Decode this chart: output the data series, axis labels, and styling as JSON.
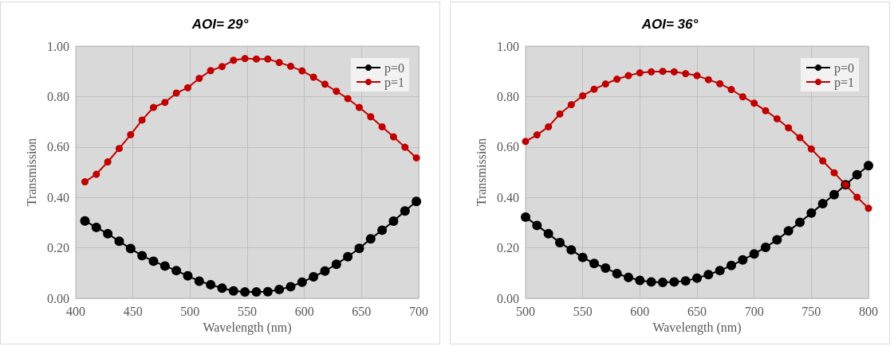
{
  "chart_data": [
    {
      "type": "line",
      "title": "AOI= 29°",
      "xlabel": "Wavelength (nm)",
      "ylabel": "Transmission",
      "x": [
        408,
        418,
        428,
        438,
        448,
        458,
        468,
        478,
        488,
        498,
        508,
        518,
        528,
        538,
        548,
        558,
        568,
        578,
        588,
        598,
        608,
        618,
        628,
        638,
        648,
        658,
        668,
        678,
        688,
        698
      ],
      "series": [
        {
          "name": "p=0",
          "color": "#000000",
          "values": [
            0.307,
            0.281,
            0.256,
            0.226,
            0.197,
            0.169,
            0.147,
            0.128,
            0.11,
            0.089,
            0.068,
            0.054,
            0.04,
            0.029,
            0.025,
            0.025,
            0.026,
            0.035,
            0.046,
            0.064,
            0.085,
            0.108,
            0.135,
            0.165,
            0.198,
            0.236,
            0.27,
            0.306,
            0.346,
            0.384
          ]
        },
        {
          "name": "p=1",
          "color": "#c00000",
          "values": [
            0.462,
            0.492,
            0.541,
            0.594,
            0.649,
            0.707,
            0.757,
            0.777,
            0.814,
            0.835,
            0.872,
            0.903,
            0.919,
            0.944,
            0.951,
            0.949,
            0.949,
            0.935,
            0.92,
            0.902,
            0.877,
            0.849,
            0.821,
            0.792,
            0.757,
            0.72,
            0.68,
            0.64,
            0.599,
            0.557
          ]
        }
      ],
      "xlim": [
        400,
        700
      ],
      "xticks": [
        400,
        450,
        500,
        550,
        600,
        650,
        700
      ],
      "ylim": [
        0,
        1
      ],
      "yticks": [
        {
          "value": 0,
          "label": "0.00"
        },
        {
          "value": 0.2,
          "label": "0.20"
        },
        {
          "value": 0.4,
          "label": "0.40"
        },
        {
          "value": 0.6,
          "label": "0.60"
        },
        {
          "value": 0.8,
          "label": "0.80"
        },
        {
          "value": 1,
          "label": "1.00"
        }
      ],
      "grid": true,
      "legend": "top right",
      "marker": "circle",
      "line_style": "solid"
    },
    {
      "type": "line",
      "title": "AOI= 36°",
      "xlabel": "Wavelength (nm)",
      "ylabel": "Transmission",
      "x": [
        500,
        510,
        520,
        530,
        540,
        550,
        560,
        570,
        580,
        590,
        600,
        610,
        620,
        630,
        640,
        650,
        660,
        670,
        680,
        690,
        700,
        710,
        720,
        730,
        740,
        750,
        760,
        770,
        780,
        790,
        800
      ],
      "series": [
        {
          "name": "p=0",
          "color": "#000000",
          "values": [
            0.322,
            0.289,
            0.256,
            0.221,
            0.192,
            0.162,
            0.138,
            0.12,
            0.098,
            0.083,
            0.071,
            0.065,
            0.063,
            0.065,
            0.069,
            0.08,
            0.094,
            0.11,
            0.13,
            0.152,
            0.176,
            0.202,
            0.232,
            0.267,
            0.301,
            0.338,
            0.375,
            0.411,
            0.45,
            0.49,
            0.526
          ]
        },
        {
          "name": "p=1",
          "color": "#c00000",
          "values": [
            0.622,
            0.648,
            0.68,
            0.731,
            0.768,
            0.803,
            0.829,
            0.85,
            0.869,
            0.883,
            0.894,
            0.898,
            0.9,
            0.898,
            0.891,
            0.883,
            0.867,
            0.851,
            0.828,
            0.799,
            0.774,
            0.744,
            0.712,
            0.676,
            0.637,
            0.592,
            0.545,
            0.498,
            0.45,
            0.401,
            0.357
          ]
        }
      ],
      "xlim": [
        500,
        800
      ],
      "xticks": [
        500,
        550,
        600,
        650,
        700,
        750,
        800
      ],
      "ylim": [
        0,
        1
      ],
      "yticks": [
        {
          "value": 0,
          "label": "0.00"
        },
        {
          "value": 0.2,
          "label": "0.20"
        },
        {
          "value": 0.4,
          "label": "0.40"
        },
        {
          "value": 0.6,
          "label": "0.60"
        },
        {
          "value": 0.8,
          "label": "0.80"
        },
        {
          "value": 1,
          "label": "1.00"
        }
      ],
      "grid": true,
      "legend": "top right",
      "marker": "circle",
      "line_style": "solid"
    }
  ]
}
